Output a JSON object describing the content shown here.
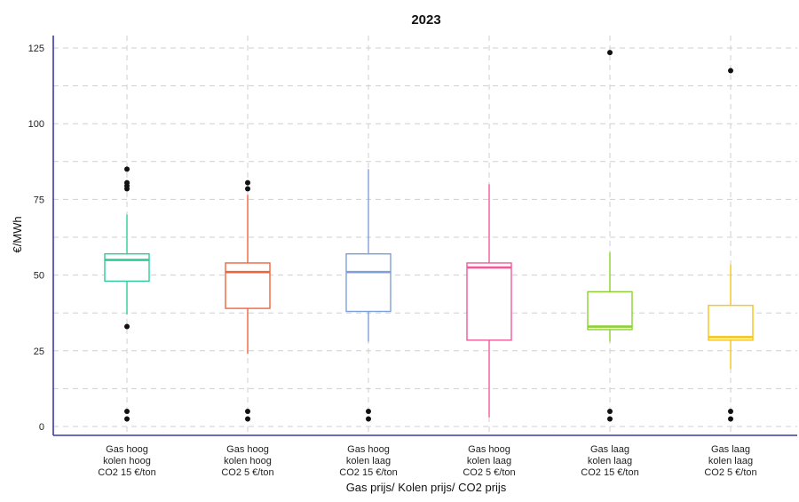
{
  "chart_data": {
    "type": "box",
    "title": "2023",
    "xlabel": "Gas prijs/ Kolen prijs/ CO2 prijs",
    "ylabel": "€/MWh",
    "ylim": [
      0,
      125
    ],
    "yticks": [
      0,
      25,
      50,
      75,
      100,
      125
    ],
    "grid": true,
    "legend": "none",
    "categories": [
      "Gas hoog kolen hoog CO2 15 €/ton",
      "Gas hoog kolen hoog CO2 5 €/ton",
      "Gas hoog kolen laag CO2 15 €/ton",
      "Gas hoog kolen laag CO2 5 €/ton",
      "Gas laag kolen laag CO2 15 €/ton",
      "Gas laag kolen laag CO2 5 €/ton"
    ],
    "category_lines": [
      [
        "Gas hoog",
        "kolen hoog",
        "CO2 15 €/ton"
      ],
      [
        "Gas hoog",
        "kolen hoog",
        "CO2 5 €/ton"
      ],
      [
        "Gas hoog",
        "kolen laag",
        "CO2 15 €/ton"
      ],
      [
        "Gas hoog",
        "kolen laag",
        "CO2 5 €/ton"
      ],
      [
        "Gas laag",
        "kolen laag",
        "CO2 15 €/ton"
      ],
      [
        "Gas laag",
        "kolen laag",
        "CO2 5 €/ton"
      ]
    ],
    "boxes": [
      {
        "whisker_low": 37,
        "q1": 48,
        "median": 55,
        "q3": 57,
        "whisker_high": 70,
        "outliers": [
          85,
          80.5,
          79.5,
          78.5,
          33,
          5,
          2.5
        ],
        "color": "#2ecc9a"
      },
      {
        "whisker_low": 24,
        "q1": 39,
        "median": 51,
        "q3": 54,
        "whisker_high": 76.5,
        "outliers": [
          80.5,
          78.5,
          5,
          2.5
        ],
        "color": "#f0643c"
      },
      {
        "whisker_low": 28,
        "q1": 38,
        "median": 51,
        "q3": 57,
        "whisker_high": 85,
        "outliers": [
          5,
          2.5
        ],
        "color": "#7f9fd8"
      },
      {
        "whisker_low": 3,
        "q1": 28.5,
        "median": 52.5,
        "q3": 54,
        "whisker_high": 80,
        "outliers": [],
        "color": "#ee5a9a"
      },
      {
        "whisker_low": 28,
        "q1": 32,
        "median": 33,
        "q3": 44.5,
        "whisker_high": 57.5,
        "outliers": [
          123.5,
          5,
          2.5
        ],
        "color": "#8bd12f"
      },
      {
        "whisker_low": 19,
        "q1": 28.5,
        "median": 29.5,
        "q3": 40,
        "whisker_high": 53.5,
        "outliers": [
          117.5,
          5,
          2.5
        ],
        "color": "#f5c518"
      }
    ]
  }
}
